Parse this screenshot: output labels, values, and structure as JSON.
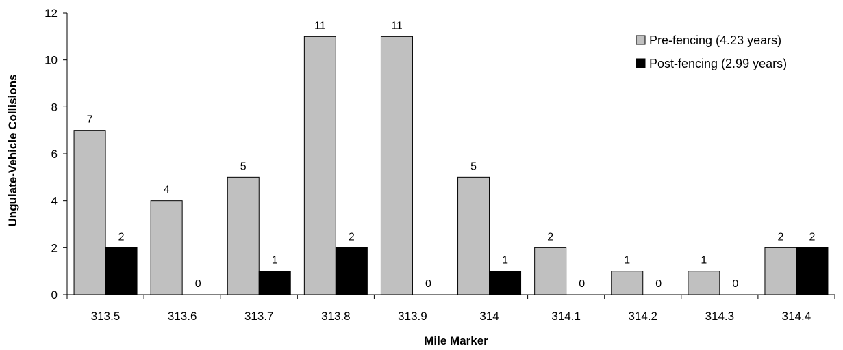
{
  "chart_data": {
    "type": "bar",
    "title": "",
    "xlabel": "Mile Marker",
    "ylabel": "Ungulate-Vehicle Collisions",
    "categories": [
      "313.5",
      "313.6",
      "313.7",
      "313.8",
      "313.9",
      "314",
      "314.1",
      "314.2",
      "314.3",
      "314.4"
    ],
    "series": [
      {
        "name": "Pre-fencing (4.23 years)",
        "color": "#c0c0c0",
        "values": [
          7,
          4,
          5,
          11,
          11,
          5,
          2,
          1,
          1,
          2
        ]
      },
      {
        "name": "Post-fencing (2.99 years)",
        "color": "#000000",
        "values": [
          2,
          0,
          1,
          2,
          0,
          1,
          0,
          0,
          0,
          2
        ]
      }
    ],
    "ylim": [
      0,
      12
    ],
    "yticks": [
      0,
      2,
      4,
      6,
      8,
      10,
      12
    ],
    "data_labels": true,
    "grid": false,
    "legend_position": "top-right"
  }
}
